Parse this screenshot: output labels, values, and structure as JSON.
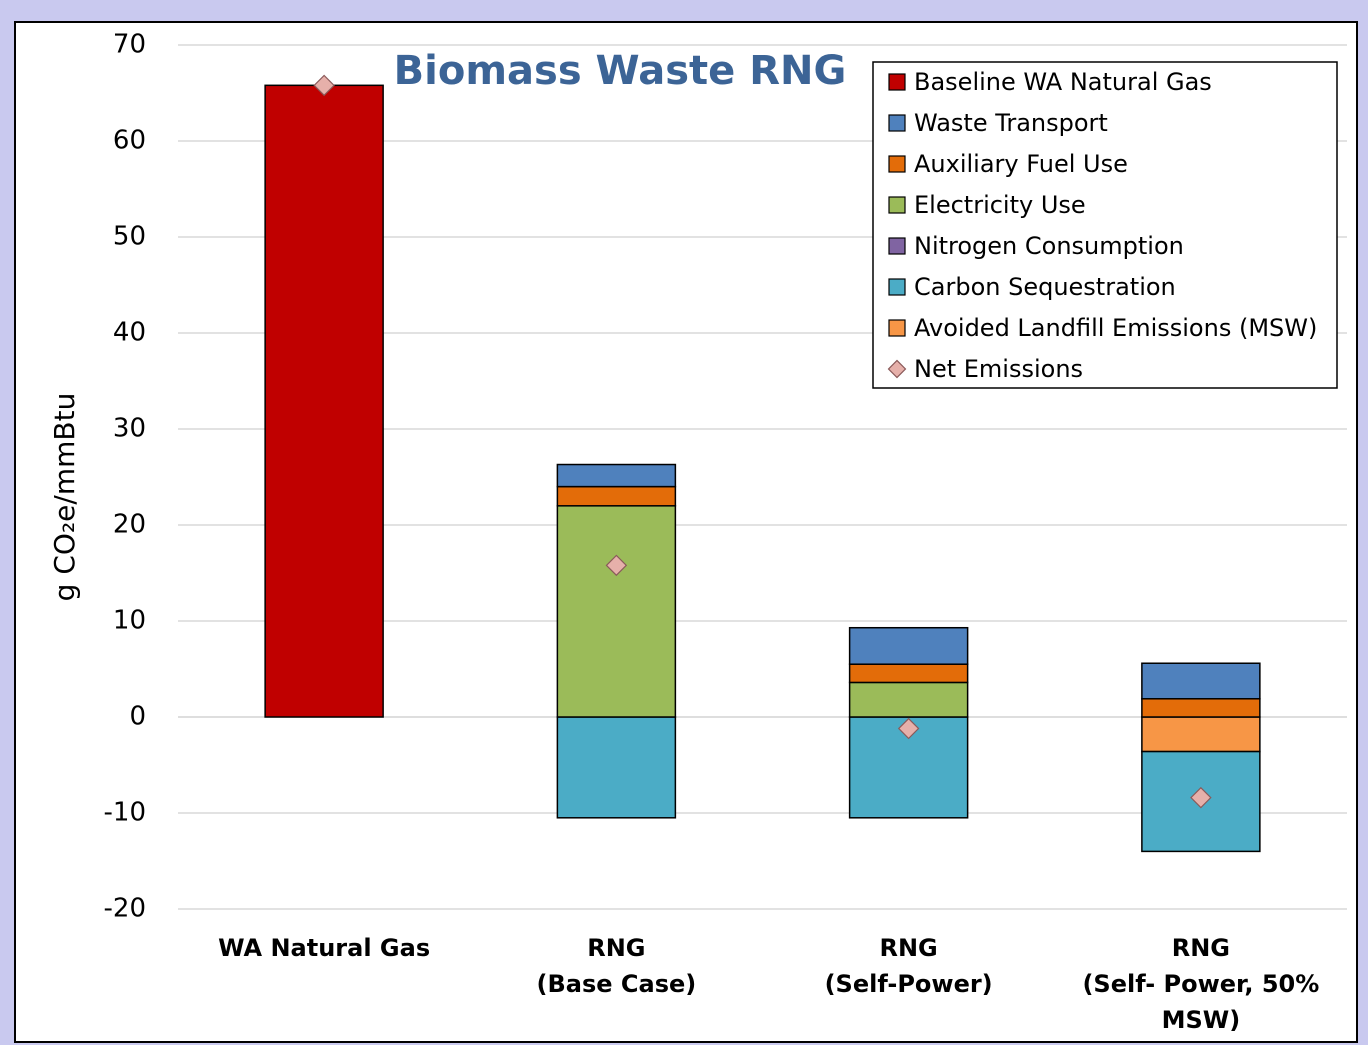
{
  "chart_data": {
    "type": "stacked-bar",
    "title": "Biomass Waste RNG",
    "y_label": "g CO₂e/mmBtu",
    "categories": [
      [
        "WA Natural Gas"
      ],
      [
        "RNG",
        "(Base Case)"
      ],
      [
        "RNG",
        "(Self-Power)"
      ],
      [
        "RNG",
        "(Self- Power, 50%",
        "MSW)"
      ]
    ],
    "series": [
      {
        "name": "Baseline WA Natural Gas",
        "color": "#c00000",
        "values": [
          65.8,
          0,
          0,
          0
        ]
      },
      {
        "name": "Waste Transport",
        "color": "#4f81bd",
        "values": [
          0,
          2.3,
          3.8,
          3.7
        ]
      },
      {
        "name": "Auxiliary Fuel Use",
        "color": "#e36c09",
        "values": [
          0,
          2.0,
          1.9,
          1.9
        ]
      },
      {
        "name": "Electricity Use",
        "color": "#9bbb59",
        "values": [
          0,
          22.0,
          3.6,
          0
        ]
      },
      {
        "name": "Nitrogen Consumption",
        "color": "#8064a2",
        "values": [
          0,
          0,
          0,
          0
        ]
      },
      {
        "name": "Carbon Sequestration",
        "color": "#4bacc6",
        "values": [
          0,
          -10.5,
          -10.5,
          -10.4
        ]
      },
      {
        "name": "Avoided Landfill Emissions (MSW)",
        "color": "#f79646",
        "values": [
          0,
          0,
          0,
          -3.6
        ]
      }
    ],
    "net": {
      "name": "Net Emissions",
      "color": "#e6b0aa",
      "values": [
        65.8,
        15.8,
        -1.2,
        -8.4
      ]
    },
    "ylim": [
      -20,
      70
    ],
    "yticks": [
      -20,
      -10,
      0,
      10,
      20,
      30,
      40,
      50,
      60,
      70
    ],
    "grid": true,
    "legend": "top-right"
  }
}
